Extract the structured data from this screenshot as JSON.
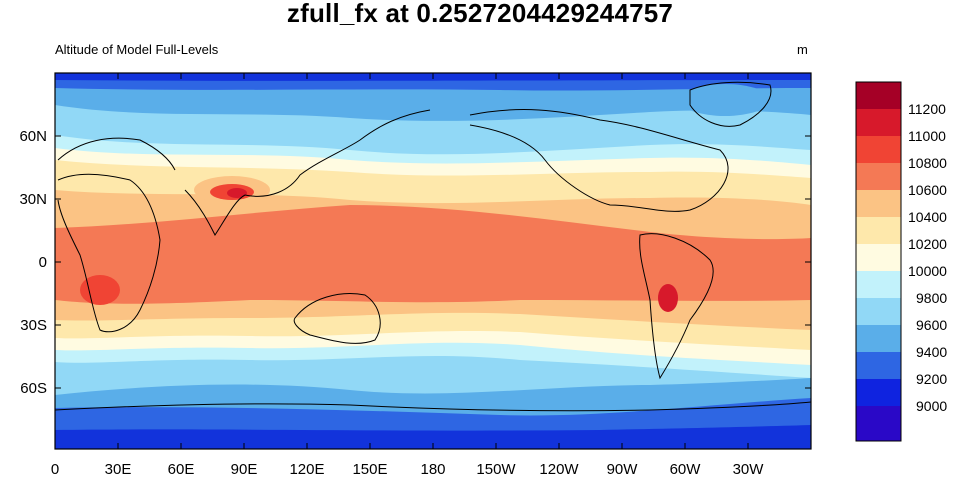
{
  "title": "zfull_fx at 0.2527204429244757",
  "subtitle_left": "Altitude of Model Full-Levels",
  "units": "m",
  "map": {
    "projection": "cylindrical-equidistant",
    "lon_range": [
      0,
      360
    ],
    "lat_range": [
      -90,
      90
    ],
    "lon_tick_labels": [
      "0",
      "30E",
      "60E",
      "90E",
      "120E",
      "150E",
      "180",
      "150W",
      "120W",
      "90W",
      "60W",
      "30W"
    ],
    "lat_tick_labels": [
      "60N",
      "30N",
      "0",
      "30S",
      "60S"
    ]
  },
  "colorbar": {
    "labels": [
      "11200",
      "11000",
      "10800",
      "10600",
      "10400",
      "10200",
      "10000",
      "9800",
      "9600",
      "9400",
      "9200",
      "9000"
    ],
    "colors": [
      "#a50026",
      "#d7192b",
      "#f04434",
      "#f47955",
      "#fbc384",
      "#fee8ab",
      "#fffbe1",
      "#c2f2fb",
      "#91d8f6",
      "#5aaee9",
      "#2e66e3",
      "#0f23e0",
      "#2a08c7"
    ]
  },
  "field_colors": {
    "deep_blue": "#1233db",
    "blue": "#2e66e3",
    "mid_blue": "#5aaee9",
    "light_blue": "#91d8f6",
    "pale_blue": "#c2f2fb",
    "cream": "#fffbe1",
    "pale_yellow": "#fee8ab",
    "tan": "#fbc384",
    "orange": "#f47955",
    "red": "#f04434",
    "dark_red": "#d7192b"
  }
}
